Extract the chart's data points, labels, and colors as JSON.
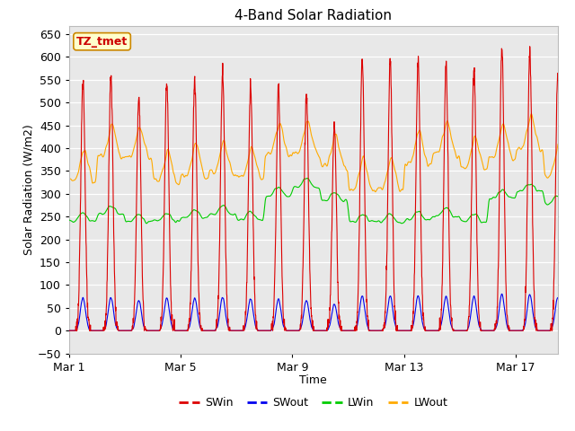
{
  "title": "4-Band Solar Radiation",
  "xlabel": "Time",
  "ylabel": "Solar Radiation (W/m2)",
  "annotation": "TZ_tmet",
  "ylim": [
    -50,
    668
  ],
  "yticks": [
    -50,
    0,
    50,
    100,
    150,
    200,
    250,
    300,
    350,
    400,
    450,
    500,
    550,
    600,
    650
  ],
  "x_ticks_labels": [
    "Mar 1",
    "Mar 5",
    "Mar 9",
    "Mar 13",
    "Mar 17"
  ],
  "x_ticks_pos": [
    0,
    4,
    8,
    12,
    16
  ],
  "xlim": [
    0,
    17.5
  ],
  "line_colors": {
    "SWin": "#dd0000",
    "SWout": "#0000ee",
    "LWin": "#00cc00",
    "LWout": "#ffaa00"
  },
  "plot_bg_color": "#e8e8e8",
  "fig_bg_color": "#ffffff",
  "grid_color": "#ffffff",
  "annotation_bg": "#ffffcc",
  "annotation_border": "#cc8800",
  "annotation_text_color": "#cc0000",
  "title_fontsize": 11,
  "axis_label_fontsize": 9,
  "tick_fontsize": 9,
  "legend_fontsize": 9,
  "n_points": 2160,
  "days": 18,
  "hours_per_day": 24
}
